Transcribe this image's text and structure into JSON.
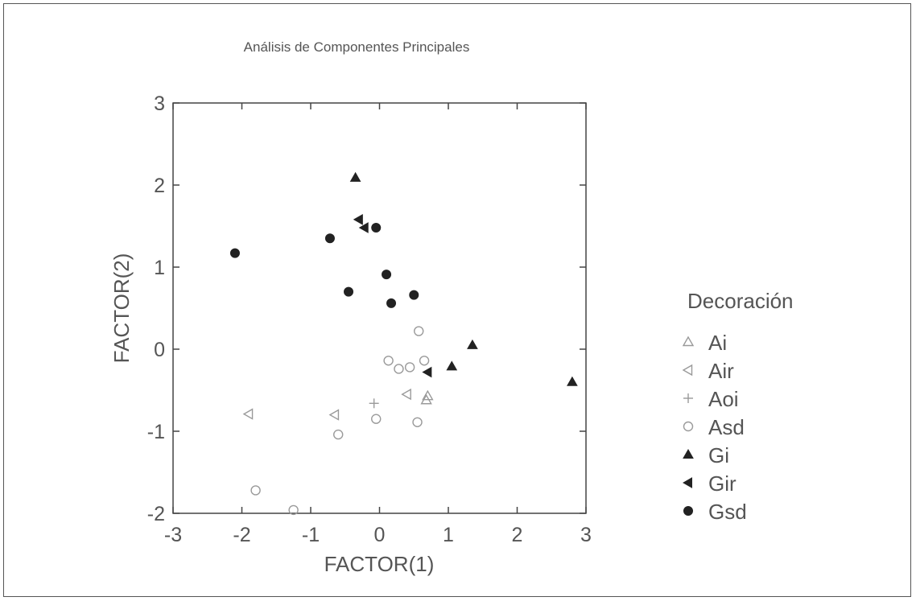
{
  "chart_data": {
    "type": "scatter",
    "title": "Análisis de Componentes Principales",
    "xlabel": "FACTOR(1)",
    "ylabel": "FACTOR(2)",
    "xlim": [
      -3,
      3
    ],
    "ylim": [
      -2,
      3
    ],
    "xticks": [
      "-3",
      "-2",
      "-1",
      "0",
      "1",
      "2",
      "3"
    ],
    "yticks": [
      "-2",
      "-1",
      "0",
      "1",
      "2",
      "3"
    ],
    "grid": false,
    "legend_placement": "right",
    "legend_title": "Decoración",
    "series": [
      {
        "name": "Ai",
        "marker": "triangle-up-open",
        "color": "#9a9a9a",
        "points": [
          [
            0.7,
            -0.57
          ],
          [
            0.68,
            -0.62
          ]
        ]
      },
      {
        "name": "Air",
        "marker": "triangle-left-open",
        "color": "#9a9a9a",
        "points": [
          [
            -1.9,
            -0.79
          ],
          [
            -0.65,
            -0.8
          ],
          [
            0.4,
            -0.55
          ]
        ]
      },
      {
        "name": "Aoi",
        "marker": "plus",
        "color": "#9a9a9a",
        "points": [
          [
            -0.08,
            -0.66
          ]
        ]
      },
      {
        "name": "Asd",
        "marker": "circle-open",
        "color": "#9a9a9a",
        "points": [
          [
            0.57,
            0.22
          ],
          [
            0.13,
            -0.14
          ],
          [
            0.28,
            -0.24
          ],
          [
            0.44,
            -0.22
          ],
          [
            0.65,
            -0.14
          ],
          [
            -0.05,
            -0.85
          ],
          [
            0.55,
            -0.89
          ],
          [
            -0.6,
            -1.04
          ],
          [
            -1.8,
            -1.72
          ],
          [
            -1.25,
            -1.96
          ]
        ]
      },
      {
        "name": "Gi",
        "marker": "triangle-up-filled",
        "color": "#222222",
        "points": [
          [
            -0.35,
            2.09
          ],
          [
            1.35,
            0.05
          ],
          [
            1.05,
            -0.21
          ],
          [
            2.8,
            -0.4
          ]
        ]
      },
      {
        "name": "Gir",
        "marker": "triangle-left-filled",
        "color": "#222222",
        "points": [
          [
            -0.3,
            1.58
          ],
          [
            -0.22,
            1.48
          ],
          [
            0.7,
            -0.28
          ]
        ]
      },
      {
        "name": "Gsd",
        "marker": "circle-filled",
        "color": "#222222",
        "points": [
          [
            -2.1,
            1.17
          ],
          [
            -0.72,
            1.35
          ],
          [
            -0.05,
            1.48
          ],
          [
            0.1,
            0.91
          ],
          [
            -0.45,
            0.7
          ],
          [
            0.17,
            0.56
          ],
          [
            0.5,
            0.66
          ]
        ]
      }
    ]
  }
}
